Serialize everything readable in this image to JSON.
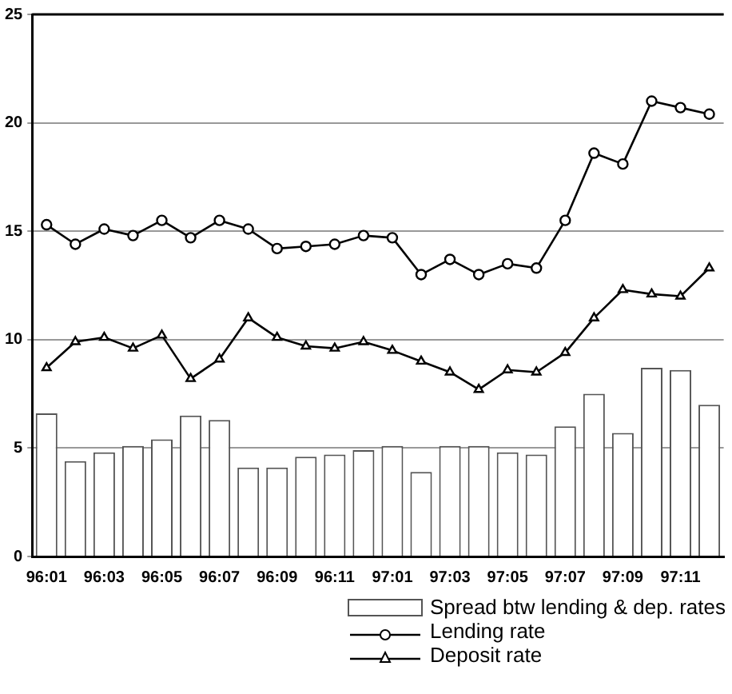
{
  "chart_data": {
    "type": "bar",
    "categories": [
      "96:01",
      null,
      "96:03",
      null,
      "96:05",
      null,
      "96:07",
      null,
      "96:09",
      null,
      "96:11",
      null,
      "97:01",
      null,
      "97:03",
      null,
      "97:05",
      null,
      "97:07",
      null,
      "97:09",
      null,
      "97:11",
      null
    ],
    "series": [
      {
        "name": "Spread btw lending & dep. rates",
        "color": "#ffffff",
        "values": [
          6.6,
          4.4,
          4.8,
          5.1,
          5.4,
          6.5,
          6.3,
          4.1,
          4.1,
          4.6,
          4.7,
          4.9,
          5.1,
          3.9,
          5.1,
          5.1,
          4.8,
          4.7,
          6.0,
          7.5,
          5.7,
          8.7,
          8.6,
          7.0
        ]
      },
      {
        "name": "Lending rate",
        "type": "line",
        "color": "#000000",
        "marker": "circle",
        "values": [
          15.3,
          14.4,
          15.1,
          14.8,
          15.5,
          14.7,
          15.5,
          15.1,
          14.2,
          14.3,
          14.4,
          14.8,
          14.7,
          13.0,
          13.7,
          13.0,
          13.5,
          13.3,
          15.5,
          18.6,
          18.1,
          21.0,
          20.7,
          20.4
        ]
      },
      {
        "name": "Deposit rate",
        "type": "line",
        "color": "#000000",
        "marker": "triangle",
        "values": [
          8.7,
          9.9,
          10.1,
          9.6,
          10.2,
          8.2,
          9.1,
          11.0,
          10.1,
          9.7,
          9.6,
          9.9,
          9.5,
          9.0,
          8.5,
          7.7,
          8.6,
          8.5,
          9.4,
          11.0,
          12.3,
          12.1,
          12.0,
          13.3
        ]
      }
    ],
    "ylim": [
      0,
      25
    ],
    "yticks": [
      0,
      5,
      10,
      15,
      20,
      25
    ],
    "grid": "y",
    "legend": "bottom right"
  }
}
